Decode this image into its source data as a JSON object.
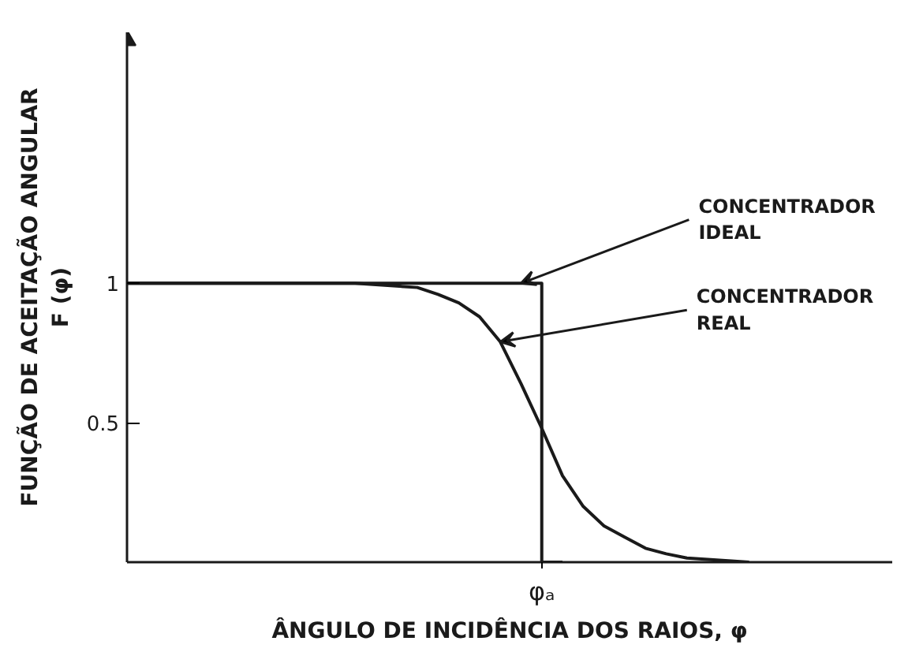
{
  "chart_data": {
    "type": "line",
    "xlabel": "ÂNGULO DE INCIDÊNCIA DOS RAIOS, φ",
    "ylabel": "FUNÇÃO DE ACEITAÇÃO ANGULAR\nF (φ)",
    "categories": [
      null,
      null,
      null,
      null,
      null,
      null,
      null,
      null,
      null,
      null,
      null,
      null,
      null,
      null,
      null,
      null,
      null,
      null,
      null,
      null,
      "φₐ",
      null,
      null,
      null,
      null,
      null,
      null,
      null,
      null,
      null,
      null
    ],
    "ylim": [
      0,
      1.9
    ],
    "yticks": [
      0.5,
      1
    ],
    "grid": false,
    "marker": "none",
    "line_style": "solid",
    "series": [
      {
        "type": "step",
        "color": "#1a1a1a",
        "values": [
          1,
          1,
          1,
          1,
          1,
          1,
          1,
          1,
          1,
          1,
          1,
          1,
          1,
          1,
          1,
          1,
          1,
          1,
          1,
          1,
          1,
          0,
          null,
          null,
          null,
          null,
          null,
          null,
          null,
          null,
          null
        ]
      },
      {
        "color": "#1a1a1a",
        "values": [
          1,
          1,
          1,
          1,
          1,
          1,
          1,
          1,
          1,
          1,
          1,
          1,
          0.995,
          0.99,
          0.985,
          0.96,
          0.93,
          0.88,
          0.79,
          0.64,
          0.48,
          0.31,
          0.2,
          0.13,
          0.09,
          0.05,
          0.03,
          0.015,
          0.01,
          0.005,
          0
        ]
      }
    ],
    "annotations": [
      "CONCENTRADOR\nIDEAL",
      "CONCENTRADOR\nREAL"
    ]
  }
}
